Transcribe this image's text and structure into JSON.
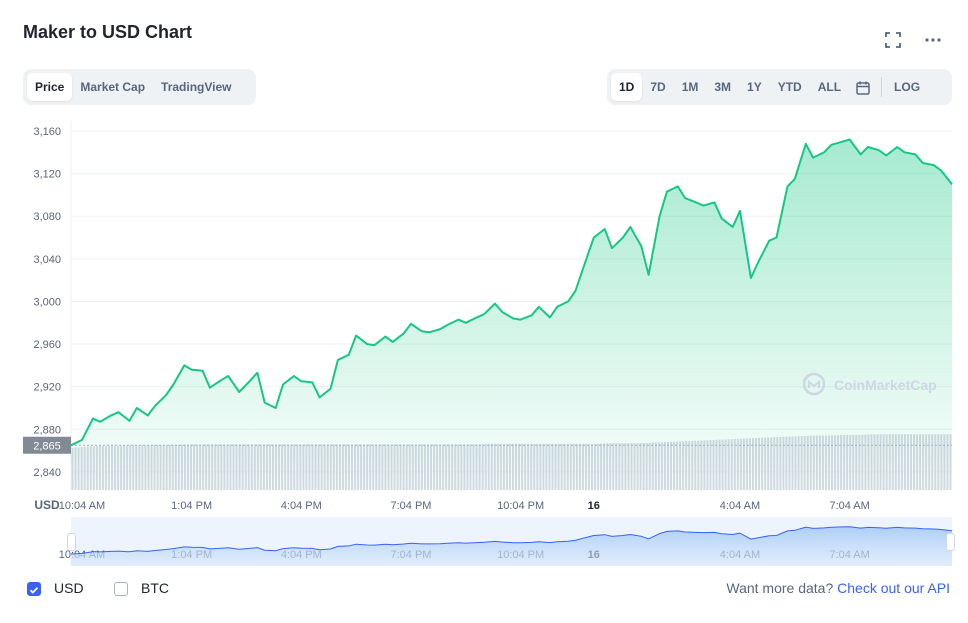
{
  "title": "Maker to USD Chart",
  "chart_tabs": [
    "Price",
    "Market Cap",
    "TradingView"
  ],
  "range_tabs": [
    "1D",
    "7D",
    "1M",
    "3M",
    "1Y",
    "YTD",
    "ALL"
  ],
  "log_label": "LOG",
  "icons": {
    "fullscreen": "fullscreen-icon",
    "more": "more-options-icon",
    "calendar": "calendar-icon",
    "check": "check-icon"
  },
  "colors": {
    "line": "#16c784",
    "accent": "#3861fb",
    "grid": "#eff2f5"
  },
  "chart_data": {
    "type": "line",
    "ylabel": "USD",
    "y_ticks": [
      "3,160",
      "3,120",
      "3,080",
      "3,040",
      "3,000",
      "2,960",
      "2,920",
      "2,880",
      "2,840"
    ],
    "y_tick_values": [
      3160,
      3120,
      3080,
      3040,
      3000,
      2960,
      2920,
      2880,
      2840
    ],
    "ylim": [
      2823,
      3160
    ],
    "x_tick_labels": [
      "10:04 AM",
      "1:04 PM",
      "4:04 PM",
      "7:04 PM",
      "10:04 PM",
      "16",
      "4:04 AM",
      "7:04 AM"
    ],
    "x_tick_hours": [
      0,
      3,
      6,
      9,
      12,
      14,
      18,
      21
    ],
    "xlim_hours": [
      -0.3,
      23.8
    ],
    "reference_value": 2865,
    "reference_label": "2,865",
    "watermark": "CoinMarketCap",
    "series": [
      {
        "hours": [
          -0.3,
          0,
          0.3,
          0.5,
          0.8,
          1.0,
          1.3,
          1.5,
          1.8,
          2.0,
          2.3,
          2.5,
          2.8,
          3.0,
          3.3,
          3.5,
          3.8,
          4.0,
          4.3,
          4.5,
          4.8,
          5.0,
          5.3,
          5.5,
          5.8,
          6.0,
          6.3,
          6.5,
          6.8,
          7.0,
          7.3,
          7.5,
          7.8,
          8.0,
          8.3,
          8.5,
          8.8,
          9.0,
          9.3,
          9.5,
          9.8,
          10.0,
          10.3,
          10.5,
          10.8,
          11.0,
          11.3,
          11.5,
          11.8,
          12.0,
          12.3,
          12.5,
          12.8,
          13.0,
          13.3,
          13.5,
          13.8,
          14.0,
          14.3,
          14.5,
          14.8,
          15.0,
          15.3,
          15.5,
          15.8,
          16.0,
          16.3,
          16.5,
          16.8,
          17.0,
          17.3,
          17.5,
          17.8,
          18.0,
          18.3,
          18.5,
          18.8,
          19.0,
          19.3,
          19.5,
          19.8,
          20.0,
          20.3,
          20.5,
          20.8,
          21.0,
          21.3,
          21.5,
          21.8,
          22.0,
          22.3,
          22.5,
          22.8,
          23.0,
          23.3,
          23.5,
          23.8
        ],
        "values": [
          2865,
          2870,
          2890,
          2887,
          2893,
          2896,
          2888,
          2900,
          2893,
          2902,
          2912,
          2922,
          2940,
          2936,
          2935,
          2919,
          2926,
          2930,
          2915,
          2922,
          2933,
          2905,
          2900,
          2922,
          2930,
          2925,
          2924,
          2910,
          2918,
          2945,
          2950,
          2968,
          2960,
          2959,
          2967,
          2962,
          2970,
          2979,
          2972,
          2971,
          2974,
          2978,
          2983,
          2980,
          2985,
          2988,
          2998,
          2990,
          2984,
          2983,
          2987,
          2995,
          2985,
          2995,
          3000,
          3010,
          3040,
          3060,
          3068,
          3050,
          3060,
          3070,
          3052,
          3025,
          3080,
          3103,
          3108,
          3097,
          3093,
          3090,
          3093,
          3078,
          3070,
          3085,
          3022,
          3037,
          3057,
          3060,
          3108,
          3115,
          3148,
          3135,
          3140,
          3147,
          3150,
          3152,
          3138,
          3145,
          3142,
          3137,
          3145,
          3140,
          3138,
          3130,
          3128,
          3123,
          3110
        ]
      }
    ],
    "volume_relative": [
      0.62,
      0.64,
      0.65,
      0.65,
      0.66,
      0.66,
      0.66,
      0.67,
      0.67,
      0.67,
      0.67,
      0.67,
      0.67,
      0.67,
      0.67,
      0.67,
      0.67,
      0.67,
      0.67,
      0.67,
      0.67,
      0.67,
      0.67,
      0.67,
      0.67,
      0.67,
      0.67,
      0.68,
      0.68,
      0.68,
      0.68,
      0.68,
      0.68,
      0.68,
      0.68,
      0.69,
      0.69,
      0.69,
      0.7,
      0.71,
      0.72,
      0.73,
      0.74,
      0.75,
      0.76,
      0.77,
      0.78,
      0.79,
      0.8,
      0.8,
      0.81,
      0.81,
      0.82,
      0.82,
      0.82,
      0.82,
      0.82,
      0.82
    ]
  },
  "navigator": {
    "labels": [
      "10:04 AM",
      "1:04 PM",
      "4:04 PM",
      "7:04 PM",
      "10:04 PM",
      "16",
      "4:04 AM",
      "7:04 AM"
    ]
  },
  "footer": {
    "usd_label": "USD",
    "btc_label": "BTC",
    "more_text": "Want more data?",
    "api_link": "Check out our API"
  }
}
